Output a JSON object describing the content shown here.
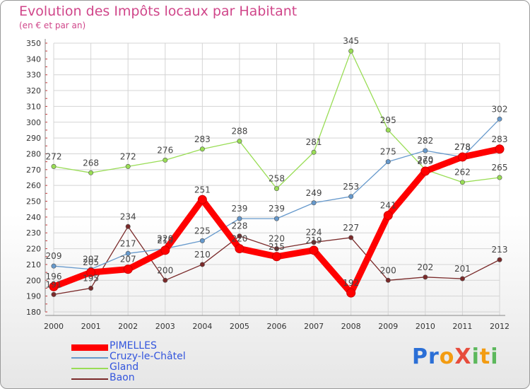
{
  "title": "Evolution des Impôts locaux par Habitant",
  "subtitle": "(en € et par an)",
  "logo": "ProXiti",
  "chart_data": {
    "type": "line",
    "x": [
      "2000",
      "2001",
      "2002",
      "2003",
      "2004",
      "2005",
      "2006",
      "2007",
      "2008",
      "2009",
      "2010",
      "2011",
      "2012"
    ],
    "ylim": [
      180,
      350
    ],
    "yticks": [
      180,
      190,
      200,
      210,
      220,
      230,
      240,
      250,
      260,
      270,
      280,
      290,
      300,
      310,
      320,
      330,
      340,
      350
    ],
    "grid": true,
    "legend_position": "bottom-left",
    "series": [
      {
        "name": "PIMELLES",
        "color": "#ff0000",
        "values": [
          196,
          205,
          207,
          219,
          251,
          220,
          215,
          219,
          192,
          241,
          269,
          278,
          283
        ]
      },
      {
        "name": "Cruzy-le-Châtel",
        "color": "#6699cc",
        "values": [
          209,
          207,
          217,
          220,
          225,
          239,
          239,
          249,
          253,
          275,
          282,
          278,
          302
        ]
      },
      {
        "name": "Gland",
        "color": "#99dd55",
        "values": [
          272,
          268,
          272,
          276,
          283,
          288,
          258,
          281,
          345,
          295,
          270,
          262,
          265
        ]
      },
      {
        "name": "Baon",
        "color": "#7a2a2a",
        "values": [
          191,
          195,
          234,
          200,
          210,
          228,
          220,
          224,
          227,
          200,
          202,
          201,
          213
        ]
      }
    ]
  }
}
